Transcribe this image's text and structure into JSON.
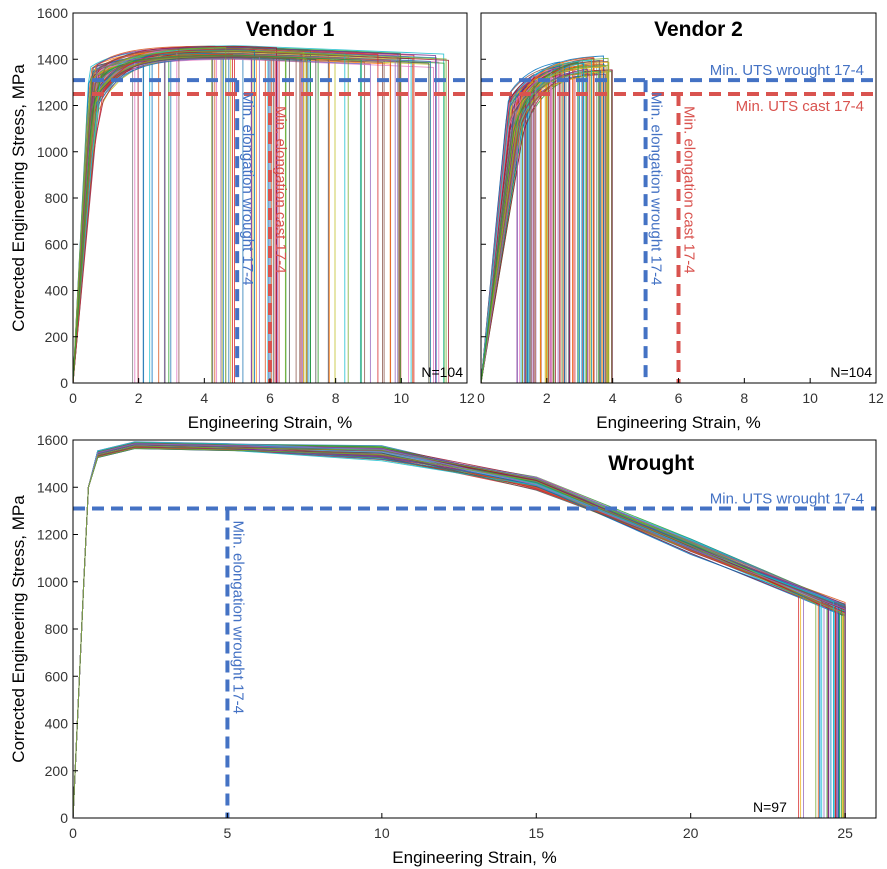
{
  "figure": {
    "ylabel": "Corrected Engineering Stress, MPa",
    "xlabel": "Engineering Strain, %"
  },
  "colors": {
    "wrought_ref": "#4472c4",
    "cast_ref": "#d9534f",
    "axis": "#000000"
  },
  "chart_data": [
    {
      "type": "line",
      "title": "Vendor 1",
      "xlabel": "Engineering Strain, %",
      "ylabel": "Corrected Engineering Stress, MPa",
      "xlim": [
        0,
        12
      ],
      "ylim": [
        0,
        1600
      ],
      "xticks": [
        0,
        2,
        4,
        6,
        8,
        10,
        12
      ],
      "yticks": [
        0,
        200,
        400,
        600,
        800,
        1000,
        1200,
        1400,
        1600
      ],
      "count_label": "N=104",
      "specimen_count": 104,
      "curve_profile": {
        "elastic_end_strain": 0.6,
        "yield_stress": 1300,
        "peak_strain": 2.5,
        "peak_stress_range": [
          1400,
          1460
        ],
        "fracture_strain_range": [
          1.8,
          11.5
        ]
      },
      "reference_lines": [
        {
          "orientation": "horizontal",
          "value": 1310,
          "label": "Min. UTS wrought 17-4",
          "color": "#4472c4",
          "label_shown": false
        },
        {
          "orientation": "horizontal",
          "value": 1250,
          "label": "Min. UTS cast 17-4",
          "color": "#d9534f",
          "label_shown": false
        },
        {
          "orientation": "vertical",
          "value": 5,
          "label": "Min. elongation wrought 17-4",
          "color": "#4472c4",
          "label_shown": true
        },
        {
          "orientation": "vertical",
          "value": 6,
          "label": "Min. elongation cast 17-4",
          "color": "#d9534f",
          "label_shown": true
        }
      ]
    },
    {
      "type": "line",
      "title": "Vendor 2",
      "xlabel": "Engineering Strain, %",
      "ylabel": "",
      "xlim": [
        0,
        12
      ],
      "ylim": [
        0,
        1600
      ],
      "xticks": [
        0,
        2,
        4,
        6,
        8,
        10,
        12
      ],
      "yticks": [],
      "count_label": "N=104",
      "specimen_count": 104,
      "curve_profile": {
        "elastic_end_strain": 1.0,
        "yield_stress": 1200,
        "peak_strain": 2.2,
        "peak_stress_range": [
          1340,
          1420
        ],
        "fracture_strain_range": [
          1.0,
          4.0
        ]
      },
      "reference_lines": [
        {
          "orientation": "horizontal",
          "value": 1310,
          "label": "Min. UTS wrought 17-4",
          "color": "#4472c4",
          "label_shown": true
        },
        {
          "orientation": "horizontal",
          "value": 1250,
          "label": "Min. UTS cast 17-4",
          "color": "#d9534f",
          "label_shown": true
        },
        {
          "orientation": "vertical",
          "value": 5,
          "label": "Min. elongation wrought 17-4",
          "color": "#4472c4",
          "label_shown": true
        },
        {
          "orientation": "vertical",
          "value": 6,
          "label": "Min. elongation cast 17-4",
          "color": "#d9534f",
          "label_shown": true
        }
      ]
    },
    {
      "type": "line",
      "title": "Wrought",
      "xlabel": "Engineering Strain, %",
      "ylabel": "Corrected Engineering Stress, MPa",
      "xlim": [
        0,
        26
      ],
      "ylim": [
        0,
        1600
      ],
      "xticks": [
        0,
        5,
        10,
        15,
        20,
        25
      ],
      "yticks": [
        0,
        200,
        400,
        600,
        800,
        1000,
        1200,
        1400,
        1600
      ],
      "count_label": "N=97",
      "specimen_count": 97,
      "curve_profile": {
        "elastic_end_strain": 0.6,
        "peak_strain": 2.0,
        "peak_stress_range": [
          1560,
          1590
        ],
        "path": [
          [
            0,
            0
          ],
          [
            0.35,
            1000
          ],
          [
            0.5,
            1400
          ],
          [
            0.8,
            1540
          ],
          [
            2,
            1578
          ],
          [
            5,
            1570
          ],
          [
            10,
            1545
          ],
          [
            15,
            1420
          ],
          [
            20,
            1150
          ],
          [
            25,
            880
          ]
        ],
        "fracture_strain_range": [
          23.2,
          25.6
        ]
      },
      "reference_lines": [
        {
          "orientation": "horizontal",
          "value": 1310,
          "label": "Min. UTS wrought 17-4",
          "color": "#4472c4",
          "label_shown": true
        },
        {
          "orientation": "vertical",
          "value": 5,
          "label": "Min. elongation wrought 17-4",
          "color": "#4472c4",
          "label_shown": true
        }
      ]
    }
  ]
}
